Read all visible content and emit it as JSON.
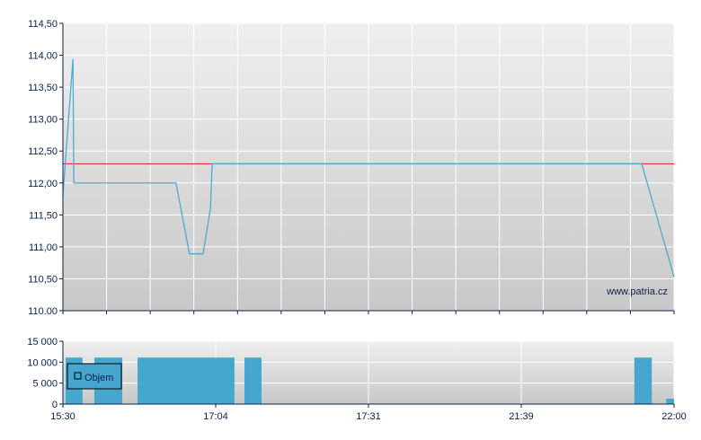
{
  "chart_data": [
    {
      "type": "line",
      "x_axis": "categorical time slots (non-linear), index 0-14",
      "xlim": [
        0,
        14
      ],
      "ylim": [
        110.0,
        114.5
      ],
      "y_ticks": [
        "110.00",
        "110,50",
        "111,00",
        "111,50",
        "112,00",
        "112,50",
        "113,00",
        "113,50",
        "114,00",
        "114,50"
      ],
      "grid": true,
      "series": [
        {
          "color": "#4ea9d4",
          "points": [
            [
              0,
              111.81
            ],
            [
              0.23,
              113.94
            ],
            [
              0.25,
              112.0
            ],
            [
              2.59,
              112.0
            ],
            [
              2.9,
              110.89
            ],
            [
              3.21,
              110.89
            ],
            [
              3.38,
              111.6
            ],
            [
              3.42,
              112.3
            ],
            [
              13.26,
              112.3
            ],
            [
              14,
              110.53
            ]
          ]
        }
      ],
      "reference_line": {
        "value": 112.3,
        "color": "#e8322e"
      },
      "watermark": "www.patria.cz"
    },
    {
      "type": "bar",
      "xlim": [
        0,
        14
      ],
      "ylim": [
        0,
        15000
      ],
      "y_ticks": [
        "0",
        "5 000",
        "10 000",
        "15 000"
      ],
      "x_tick_labels": [
        {
          "x": 0,
          "label": "15:30"
        },
        {
          "x": 3.5,
          "label": "17:04"
        },
        {
          "x": 7,
          "label": "17:31"
        },
        {
          "x": 10.5,
          "label": "21:39"
        },
        {
          "x": 14,
          "label": "22:00"
        }
      ],
      "grid": true,
      "legend": {
        "label": "Objem",
        "placement": "top-left"
      },
      "color": "#46a6ce",
      "bars": [
        {
          "from": 0.06,
          "to": 0.45,
          "value": 11100
        },
        {
          "from": 0.72,
          "to": 1.36,
          "value": 11100
        },
        {
          "from": 1.71,
          "to": 3.93,
          "value": 11100
        },
        {
          "from": 4.16,
          "to": 4.55,
          "value": 11100
        },
        {
          "from": 13.09,
          "to": 13.49,
          "value": 11100
        },
        {
          "from": 13.82,
          "to": 14,
          "value": 1300
        }
      ]
    }
  ]
}
